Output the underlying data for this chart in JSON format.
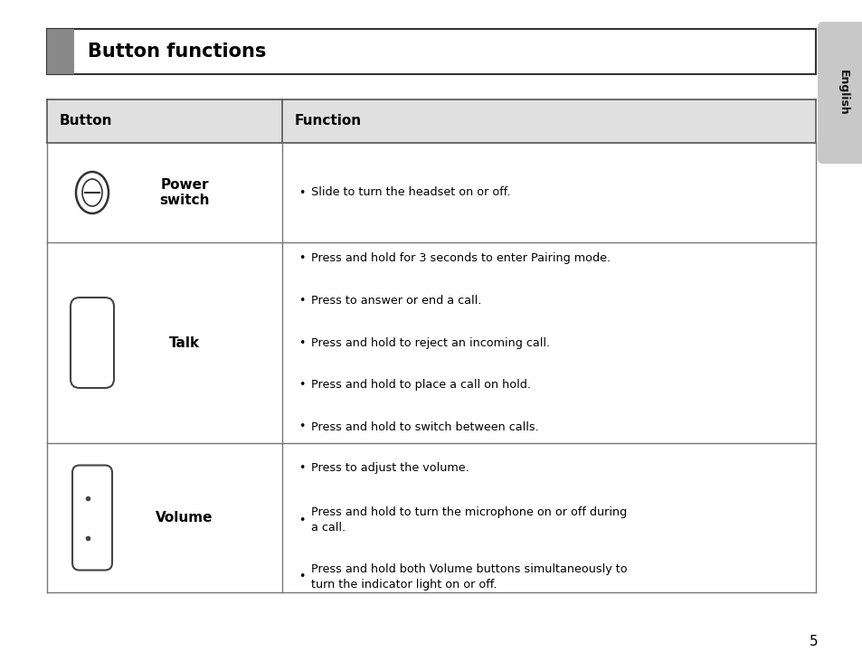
{
  "title": "Button functions",
  "header_bg": "#e0e0e0",
  "header_col1": "Button",
  "header_col2": "Function",
  "page_number": "5",
  "tab_text": "English",
  "rows": [
    {
      "button_name": "Power\nswitch",
      "functions": [
        "Slide to turn the headset on or off."
      ]
    },
    {
      "button_name": "Talk",
      "functions": [
        "Press and hold for 3 seconds to enter Pairing mode.",
        "Press to answer or end a call.",
        "Press and hold to reject an incoming call.",
        "Press and hold to place a call on hold.",
        "Press and hold to switch between calls."
      ]
    },
    {
      "button_name": "Volume",
      "functions": [
        "Press to adjust the volume.",
        "Press and hold to turn the microphone on or off during\na call.",
        "Press and hold both Volume buttons simultaneously to\nturn the indicator light on or off."
      ]
    }
  ],
  "bg_color": "#ffffff",
  "line_color": "#999999",
  "title_bar_color": "#888888",
  "title_bg_color": "#f0f0f0",
  "title_border_color": "#333333",
  "tab_color": "#c8c8c8",
  "tab_text_color": "#111111"
}
